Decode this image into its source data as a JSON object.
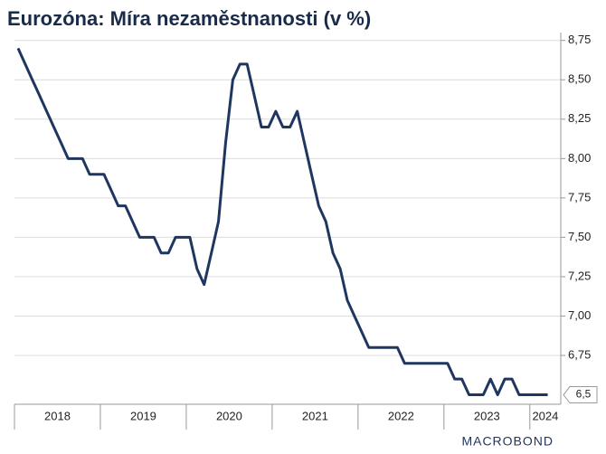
{
  "chart_data": {
    "type": "line",
    "title": "Eurozóna: Míra nezaměstnanosti (v %)",
    "source": "MACROBOND",
    "color": "#1f3660",
    "x": [
      2018.042,
      2018.125,
      2018.208,
      2018.292,
      2018.375,
      2018.458,
      2018.542,
      2018.625,
      2018.708,
      2018.792,
      2018.875,
      2018.958,
      2019.042,
      2019.125,
      2019.208,
      2019.292,
      2019.375,
      2019.458,
      2019.542,
      2019.625,
      2019.708,
      2019.792,
      2019.875,
      2019.958,
      2020.042,
      2020.125,
      2020.208,
      2020.292,
      2020.375,
      2020.458,
      2020.542,
      2020.625,
      2020.708,
      2020.792,
      2020.875,
      2020.958,
      2021.042,
      2021.125,
      2021.208,
      2021.292,
      2021.375,
      2021.458,
      2021.542,
      2021.625,
      2021.708,
      2021.792,
      2021.875,
      2021.958,
      2022.042,
      2022.125,
      2022.208,
      2022.292,
      2022.375,
      2022.458,
      2022.542,
      2022.625,
      2022.708,
      2022.792,
      2022.875,
      2022.958,
      2023.042,
      2023.125,
      2023.208,
      2023.292,
      2023.375,
      2023.458,
      2023.542,
      2023.625,
      2023.708,
      2023.792,
      2023.875,
      2023.958,
      2024.042,
      2024.125,
      2024.208
    ],
    "values": [
      8.7,
      8.6,
      8.5,
      8.4,
      8.3,
      8.2,
      8.1,
      8.0,
      8.0,
      8.0,
      7.9,
      7.9,
      7.9,
      7.8,
      7.7,
      7.7,
      7.6,
      7.5,
      7.5,
      7.5,
      7.4,
      7.4,
      7.5,
      7.5,
      7.5,
      7.3,
      7.2,
      7.4,
      7.6,
      8.1,
      8.5,
      8.6,
      8.6,
      8.4,
      8.2,
      8.2,
      8.3,
      8.2,
      8.2,
      8.3,
      8.1,
      7.9,
      7.7,
      7.6,
      7.4,
      7.3,
      7.1,
      7.0,
      6.9,
      6.8,
      6.8,
      6.8,
      6.8,
      6.8,
      6.7,
      6.7,
      6.7,
      6.7,
      6.7,
      6.7,
      6.7,
      6.6,
      6.6,
      6.5,
      6.5,
      6.5,
      6.6,
      6.5,
      6.6,
      6.6,
      6.5,
      6.5,
      6.5,
      6.5,
      6.5
    ],
    "value_labels": [
      null,
      null,
      null,
      null,
      null,
      null,
      null,
      null,
      null,
      null,
      null,
      null,
      null,
      null,
      null,
      null,
      null,
      null,
      null,
      null,
      null,
      null,
      null,
      null,
      null,
      null,
      null,
      null,
      null,
      null,
      null,
      null,
      null,
      null,
      null,
      null,
      null,
      null,
      null,
      null,
      null,
      null,
      null,
      null,
      null,
      null,
      null,
      null,
      null,
      null,
      null,
      null,
      null,
      null,
      null,
      null,
      null,
      null,
      null,
      null,
      null,
      null,
      null,
      null,
      null,
      null,
      null,
      null,
      null,
      null,
      null,
      null,
      null,
      null,
      "6,5"
    ],
    "xlim": [
      2018,
      2024.36
    ],
    "xticks": [
      2018,
      2019,
      2020,
      2021,
      2022,
      2023,
      2024
    ],
    "ylim": [
      6.44,
      8.8
    ],
    "yticks": [
      {
        "value": 6.75,
        "label": "6,75"
      },
      {
        "value": 7.0,
        "label": "7,00"
      },
      {
        "value": 7.25,
        "label": "7,25"
      },
      {
        "value": 7.5,
        "label": "7,50"
      },
      {
        "value": 7.75,
        "label": "7,75"
      },
      {
        "value": 8.0,
        "label": "8,00"
      },
      {
        "value": 8.25,
        "label": "8,25"
      },
      {
        "value": 8.5,
        "label": "8,50"
      },
      {
        "value": 8.75,
        "label": "8,75"
      }
    ],
    "grid": true
  }
}
